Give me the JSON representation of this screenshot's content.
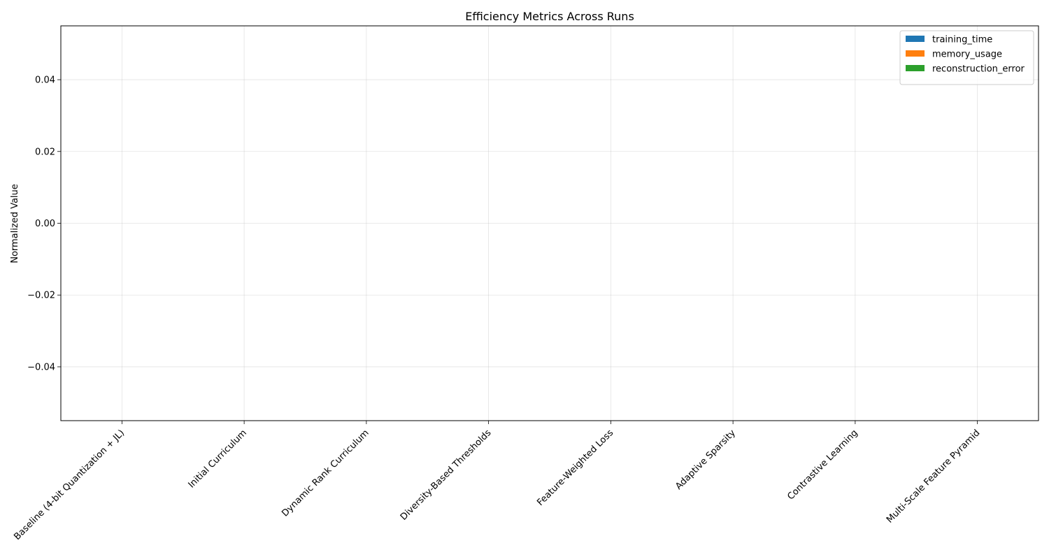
{
  "chart_data": {
    "type": "bar",
    "title": "Efficiency Metrics Across Runs",
    "xlabel": "",
    "ylabel": "Normalized Value",
    "categories": [
      "Baseline (4-bit Quantization + JL)",
      "Initial Curriculum",
      "Dynamic Rank Curriculum",
      "Diversity-Based Thresholds",
      "Feature-Weighted Loss",
      "Adaptive Sparsity",
      "Contrastive Learning",
      "Multi-Scale Feature Pyramid"
    ],
    "series": [
      {
        "name": "training_time",
        "color": "#1f77b4",
        "values": [
          0,
          0,
          0,
          0,
          0,
          0,
          0,
          0
        ]
      },
      {
        "name": "memory_usage",
        "color": "#ff7f0e",
        "values": [
          0,
          0,
          0,
          0,
          0,
          0,
          0,
          0
        ]
      },
      {
        "name": "reconstruction_error",
        "color": "#2ca02c",
        "values": [
          0,
          0,
          0,
          0,
          0,
          0,
          0,
          0
        ]
      }
    ],
    "ylim": [
      -0.055,
      0.055
    ],
    "yticks": [
      -0.04,
      -0.02,
      0.0,
      0.02,
      0.04
    ],
    "ytick_labels": [
      "−0.04",
      "−0.02",
      "0.00",
      "0.02",
      "0.04"
    ],
    "grid": true,
    "legend_position": "top-right"
  }
}
